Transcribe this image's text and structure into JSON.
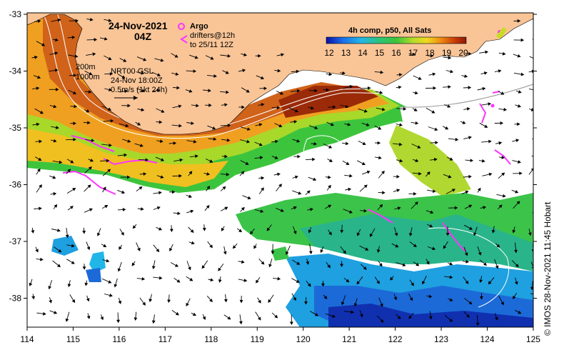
{
  "map": {
    "date": "24-Nov-2021",
    "time": "04Z",
    "argo_label": "Argo",
    "drifters_line1": "drifters@12h",
    "drifters_line2": "to 25/11 12Z",
    "contour_200": "200m",
    "contour_1000": "1000m",
    "nrt_label": "NRT00 GSL",
    "nrt_time": "24-Nov 18:00Z",
    "scale_label": "0.5m/s (1kt 24h)",
    "colorbar_title": "4h comp, p50, All Sats",
    "colorbar_ticks": [
      "12",
      "13",
      "14",
      "15",
      "16",
      "17",
      "18",
      "19",
      "20"
    ],
    "credit": "IMOS 28-Nov-2021 11:45 Hobart",
    "copyright": "©",
    "x_ticks": [
      "114",
      "115",
      "116",
      "117",
      "118",
      "119",
      "120",
      "121",
      "122",
      "123",
      "124",
      "125"
    ],
    "y_ticks": [
      "-33",
      "-34",
      "-35",
      "-36",
      "-37",
      "-38"
    ],
    "colors": {
      "land": "#f9c597",
      "argo": "#ff33ff",
      "arrow": "#000000",
      "contour": "#ffffff"
    }
  }
}
